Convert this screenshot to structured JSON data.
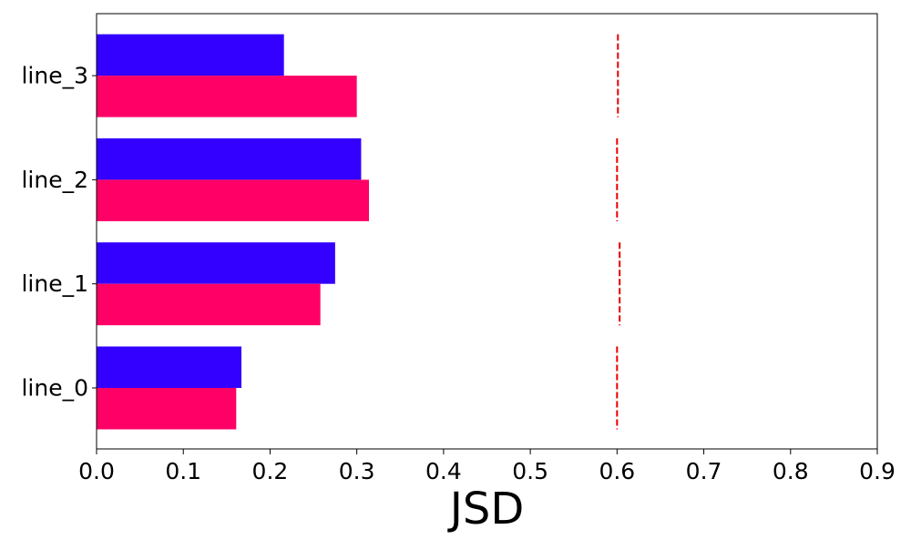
{
  "chart_data": {
    "type": "bar",
    "orientation": "horizontal",
    "categories": [
      "line_0",
      "line_1",
      "line_2",
      "line_3"
    ],
    "series": [
      {
        "values": [
          0.167,
          0.275,
          0.305,
          0.216
        ],
        "color": "#3300ff"
      },
      {
        "values": [
          0.161,
          0.258,
          0.314,
          0.3
        ],
        "color": "#ff0066"
      }
    ],
    "reference_lines": {
      "style": "dashed",
      "color": "#e60000",
      "values": [
        0.6,
        0.603,
        0.6,
        0.601
      ]
    },
    "title": "",
    "xlabel": "JSD",
    "ylabel": "",
    "xlim": [
      0,
      0.9
    ],
    "xticks": [
      0,
      0.1,
      0.2,
      0.3,
      0.4,
      0.5,
      0.6,
      0.7,
      0.8,
      0.9
    ],
    "xtick_labels": [
      "0.0",
      "0.1",
      "0.2",
      "0.3",
      "0.4",
      "0.5",
      "0.6",
      "0.7",
      "0.8",
      "0.9"
    ],
    "grid": false,
    "legend": false
  }
}
